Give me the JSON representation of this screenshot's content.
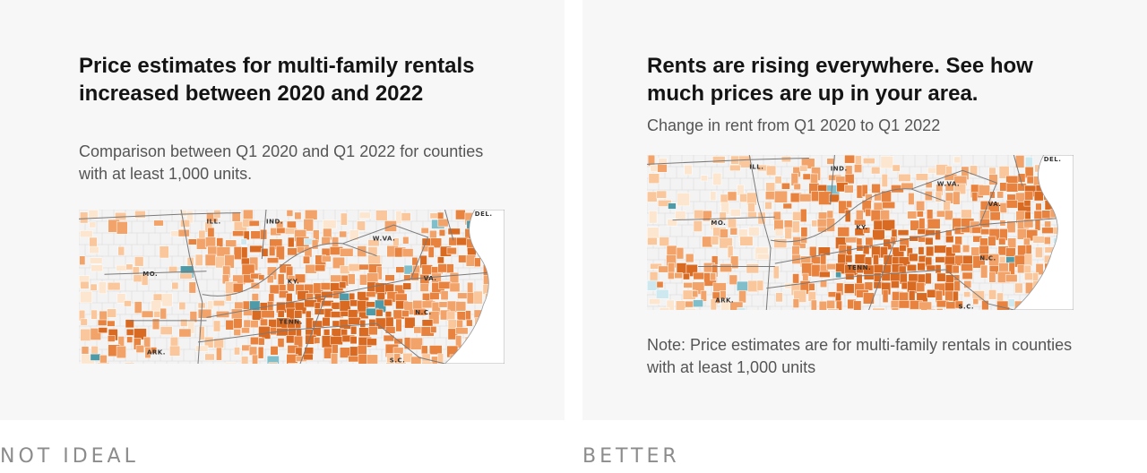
{
  "left": {
    "title": "Price estimates for multi-family rentals increased between 2020 and 2022",
    "subtitle": "Comparison between Q1 2020 and Q1 2022 for counties with at least 1,000 units.",
    "verdict": "NOT IDEAL",
    "state_labels": [
      "IND.",
      "ILL.",
      "W.VA.",
      "DEL.",
      "MO.",
      "KY.",
      "VA.",
      "TENN.",
      "N.C.",
      "ARK.",
      "S.C."
    ]
  },
  "right": {
    "title": "Rents are rising everywhere. See how much prices are up in your area.",
    "subtitle": "Change in rent from Q1 2020 to Q1 2022",
    "note": "Note: Price estimates are for multi-family rentals in counties with at least 1,000 units",
    "verdict": "BETTER",
    "state_labels": [
      "ILL.",
      "IND.",
      "DEL.",
      "W.VA.",
      "MO.",
      "VA.",
      "KY.",
      "TENN.",
      "N.C.",
      "ARK.",
      "S.C."
    ]
  },
  "colors": {
    "panel_bg": "#f7f7f7",
    "increase_scale": [
      "#fde6cf",
      "#f9c79b",
      "#f2a36a",
      "#e8833f",
      "#d96a22"
    ],
    "decrease_scale": [
      "#cde9ef",
      "#7fbfcb",
      "#4d9aa9"
    ],
    "verdict_text": "#8c8c8c"
  }
}
